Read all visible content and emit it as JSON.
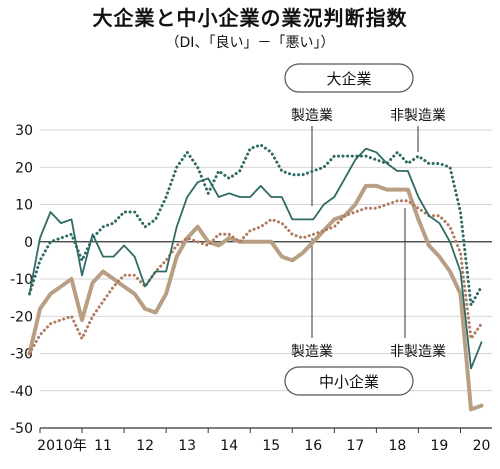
{
  "title": "大企業と中小企業の業況判断指数",
  "subtitle": "（DI、「良い」－「悪い」）",
  "chart_data": {
    "type": "line",
    "title": "大企業と中小企業の業況判断指数",
    "subtitle": "（DI、「良い」－「悪い」）",
    "ylim": [
      -50,
      30
    ],
    "yticks": [
      "30",
      "20",
      "10",
      "0",
      "-10",
      "-20",
      "-30",
      "-40",
      "-50"
    ],
    "xticks": [
      "2010年",
      "11",
      "12",
      "13",
      "14",
      "15",
      "16",
      "17",
      "18",
      "19",
      "20"
    ],
    "xlim": [
      2010,
      2020.75
    ],
    "groups": {
      "large": "大企業",
      "small": "中小企業"
    },
    "series_labels": {
      "large_manufacturing": "製造業",
      "large_nonmanufacturing": "非製造業",
      "small_manufacturing": "製造業",
      "small_nonmanufacturing": "非製造業"
    },
    "series": [
      {
        "name": "大企業 製造業",
        "style": "solid-thin",
        "color": "#2e6b64",
        "x": [
          2009.75,
          2010.0,
          2010.25,
          2010.5,
          2010.75,
          2011.0,
          2011.25,
          2011.5,
          2011.75,
          2012.0,
          2012.25,
          2012.5,
          2012.75,
          2013.0,
          2013.25,
          2013.5,
          2013.75,
          2014.0,
          2014.25,
          2014.5,
          2014.75,
          2015.0,
          2015.25,
          2015.5,
          2015.75,
          2016.0,
          2016.25,
          2016.5,
          2016.75,
          2017.0,
          2017.25,
          2017.5,
          2017.75,
          2018.0,
          2018.25,
          2018.5,
          2018.75,
          2019.0,
          2019.25,
          2019.5,
          2019.75,
          2020.0,
          2020.25,
          2020.5
        ],
        "y": [
          -14,
          1,
          8,
          5,
          6,
          -9,
          2,
          -4,
          -4,
          -1,
          -4,
          -12,
          -8,
          -8,
          4,
          12,
          16,
          17,
          12,
          13,
          12,
          12,
          15,
          12,
          12,
          6,
          6,
          6,
          10,
          12,
          17,
          22,
          25,
          24,
          21,
          19,
          19,
          12,
          7,
          5,
          0,
          -8,
          -34,
          -27
        ]
      },
      {
        "name": "大企業 非製造業",
        "style": "dotted",
        "color": "#2e6b64",
        "x": [
          2009.75,
          2010.0,
          2010.25,
          2010.5,
          2010.75,
          2011.0,
          2011.25,
          2011.5,
          2011.75,
          2012.0,
          2012.25,
          2012.5,
          2012.75,
          2013.0,
          2013.25,
          2013.5,
          2013.75,
          2014.0,
          2014.25,
          2014.5,
          2014.75,
          2015.0,
          2015.25,
          2015.5,
          2015.75,
          2016.0,
          2016.25,
          2016.5,
          2016.75,
          2017.0,
          2017.25,
          2017.5,
          2017.75,
          2018.0,
          2018.25,
          2018.5,
          2018.75,
          2019.0,
          2019.25,
          2019.5,
          2019.75,
          2020.0,
          2020.25,
          2020.5
        ],
        "y": [
          -14,
          -5,
          0,
          1,
          2,
          -5,
          1,
          4,
          5,
          8,
          8,
          4,
          6,
          12,
          20,
          24,
          20,
          13,
          19,
          17,
          19,
          25,
          26,
          24,
          19,
          18,
          18,
          19,
          20,
          23,
          23,
          23,
          23,
          22,
          21,
          24,
          21,
          23,
          21,
          21,
          20,
          8,
          -17,
          -12
        ]
      },
      {
        "name": "中小企業 製造業",
        "style": "solid-thick",
        "color": "#b89f84",
        "x": [
          2009.75,
          2010.0,
          2010.25,
          2010.5,
          2010.75,
          2011.0,
          2011.25,
          2011.5,
          2011.75,
          2012.0,
          2012.25,
          2012.5,
          2012.75,
          2013.0,
          2013.25,
          2013.5,
          2013.75,
          2014.0,
          2014.25,
          2014.5,
          2014.75,
          2015.0,
          2015.25,
          2015.5,
          2015.75,
          2016.0,
          2016.25,
          2016.5,
          2016.75,
          2017.0,
          2017.25,
          2017.5,
          2017.75,
          2018.0,
          2018.25,
          2018.5,
          2018.75,
          2019.0,
          2019.25,
          2019.5,
          2019.75,
          2020.0,
          2020.25,
          2020.5
        ],
        "y": [
          -30,
          -18,
          -14,
          -12,
          -10,
          -21,
          -11,
          -8,
          -10,
          -12,
          -14,
          -18,
          -19,
          -14,
          -4,
          1,
          4,
          0,
          -1,
          1,
          0,
          0,
          0,
          0,
          -4,
          -5,
          -3,
          0,
          3,
          6,
          7,
          10,
          15,
          15,
          14,
          14,
          14,
          6,
          -1,
          -4,
          -8,
          -14,
          -45,
          -44
        ]
      },
      {
        "name": "中小企業 非製造業",
        "style": "dotted",
        "color": "#b07a5f",
        "x": [
          2009.75,
          2010.0,
          2010.25,
          2010.5,
          2010.75,
          2011.0,
          2011.25,
          2011.5,
          2011.75,
          2012.0,
          2012.25,
          2012.5,
          2012.75,
          2013.0,
          2013.25,
          2013.5,
          2013.75,
          2014.0,
          2014.25,
          2014.5,
          2014.75,
          2015.0,
          2015.25,
          2015.5,
          2015.75,
          2016.0,
          2016.25,
          2016.5,
          2016.75,
          2017.0,
          2017.25,
          2017.5,
          2017.75,
          2018.0,
          2018.25,
          2018.5,
          2018.75,
          2019.0,
          2019.25,
          2019.5,
          2019.75,
          2020.0,
          2020.25,
          2020.5
        ],
        "y": [
          -30,
          -25,
          -22,
          -21,
          -20,
          -26,
          -20,
          -16,
          -12,
          -9,
          -9,
          -12,
          -8,
          -5,
          -1,
          1,
          0,
          -1,
          2,
          2,
          0,
          3,
          4,
          6,
          5,
          2,
          1,
          2,
          3,
          4,
          7,
          8,
          9,
          9,
          10,
          11,
          11,
          9,
          7,
          7,
          4,
          -3,
          -26,
          -22
        ]
      }
    ]
  }
}
